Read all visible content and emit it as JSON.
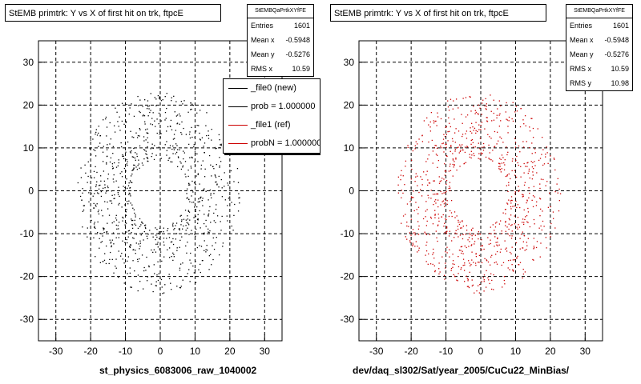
{
  "pads": [
    {
      "title": "StEMB primtrk: Y vs X of first hit on trk, ftpcE",
      "stats": {
        "header": "StEMBQaPrtkXYfFE",
        "rows": [
          {
            "label": "Entries",
            "value": "1601"
          },
          {
            "label": "Mean x",
            "value": "-0.5948"
          },
          {
            "label": "Mean y",
            "value": "-0.5276"
          },
          {
            "label": "RMS x",
            "value": "10.59"
          }
        ]
      },
      "legend": [
        {
          "label": "_file0 (new)",
          "color": "#000000"
        },
        {
          "label": "prob = 1.000000",
          "color": "#000000"
        },
        {
          "label": "_file1 (ref)",
          "color": "#cc0000"
        },
        {
          "label": "probN = 1.000000",
          "color": "#cc0000"
        }
      ],
      "footer": "st_physics_6083006_raw_1040002",
      "marker_color": "#000000"
    },
    {
      "title": "StEMB primtrk: Y vs X of first hit on trk, ftpcE",
      "stats": {
        "header": "StEMBQaPrtkXYfFE",
        "rows": [
          {
            "label": "Entries",
            "value": "1601"
          },
          {
            "label": "Mean x",
            "value": "-0.5948"
          },
          {
            "label": "Mean y",
            "value": "-0.5276"
          },
          {
            "label": "RMS x",
            "value": "10.59"
          },
          {
            "label": "RMS y",
            "value": "10.98"
          }
        ]
      },
      "footer": "dev/daq_sl302/Sat/year_2005/CuCu22_MinBias/",
      "marker_color": "#cc0000"
    }
  ],
  "chart_data": [
    {
      "type": "scatter",
      "title": "StEMB primtrk: Y vs X of first hit on trk, ftpcE",
      "xlabel": "st_physics_6083006_raw_1040002",
      "ylabel": "",
      "xlim": [
        -35,
        35
      ],
      "ylim": [
        -35,
        35
      ],
      "xticks": [
        -30,
        -20,
        -10,
        0,
        10,
        20,
        30
      ],
      "yticks": [
        -30,
        -20,
        -10,
        0,
        10,
        20,
        30
      ],
      "grid": true,
      "entries": 1601,
      "mean_x": -0.5948,
      "mean_y": -0.5276,
      "rms_x": 10.59,
      "distribution": "annulus r in [8,24] centred near origin",
      "series": [
        {
          "name": "_file0 (new)",
          "color": "#000000"
        }
      ]
    },
    {
      "type": "scatter",
      "title": "StEMB primtrk: Y vs X of first hit on trk, ftpcE",
      "xlabel": "dev/daq_sl302/Sat/year_2005/CuCu22_MinBias/",
      "ylabel": "",
      "xlim": [
        -35,
        35
      ],
      "ylim": [
        -35,
        35
      ],
      "xticks": [
        -30,
        -20,
        -10,
        0,
        10,
        20,
        30
      ],
      "yticks": [
        -30,
        -20,
        -10,
        0,
        10,
        20,
        30
      ],
      "grid": true,
      "entries": 1601,
      "mean_x": -0.5948,
      "mean_y": -0.5276,
      "rms_x": 10.59,
      "rms_y": 10.98,
      "distribution": "annulus r in [8,24] centred near origin",
      "series": [
        {
          "name": "_file1 (ref)",
          "color": "#cc0000"
        }
      ]
    }
  ]
}
